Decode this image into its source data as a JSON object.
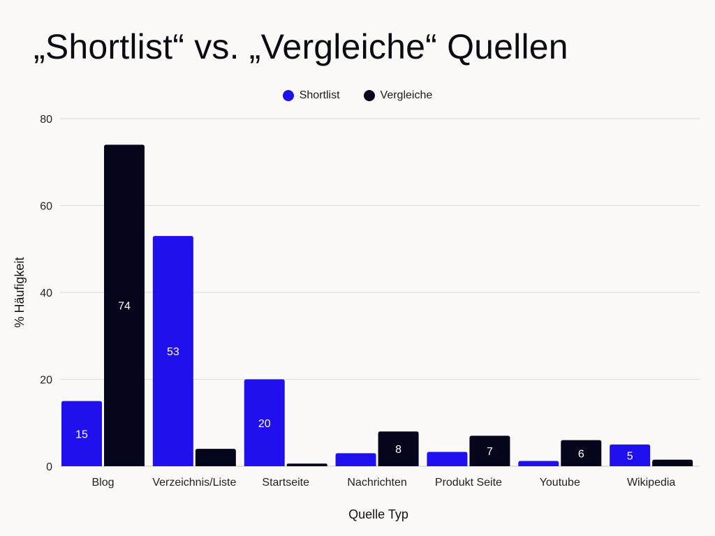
{
  "title": "„Shortlist“ vs. „Vergleiche“ Quellen",
  "chart_data": {
    "type": "bar",
    "title": "„Shortlist“ vs. „Vergleiche“ Quellen",
    "xlabel": "Quelle Typ",
    "ylabel": "% Häufigkeit",
    "ylim": [
      0,
      80
    ],
    "yticks": [
      0,
      20,
      40,
      60,
      80
    ],
    "grid": true,
    "legend_position": "top-center",
    "categories": [
      "Blog",
      "Verzeichnis/Liste",
      "Startseite",
      "Nachrichten",
      "Produkt Seite",
      "Youtube",
      "Wikipedia"
    ],
    "series": [
      {
        "name": "Shortlist",
        "color": "#2010ee",
        "values": [
          15,
          53,
          20,
          3,
          3.3,
          1.2,
          5
        ],
        "labels": [
          "15",
          "53",
          "20",
          "",
          "",
          "",
          "5"
        ]
      },
      {
        "name": "Vergleiche",
        "color": "#05061c",
        "values": [
          74,
          4,
          0.6,
          8,
          7,
          6,
          1.5
        ],
        "labels": [
          "74",
          "",
          "",
          "8",
          "7",
          "6",
          ""
        ]
      }
    ]
  }
}
